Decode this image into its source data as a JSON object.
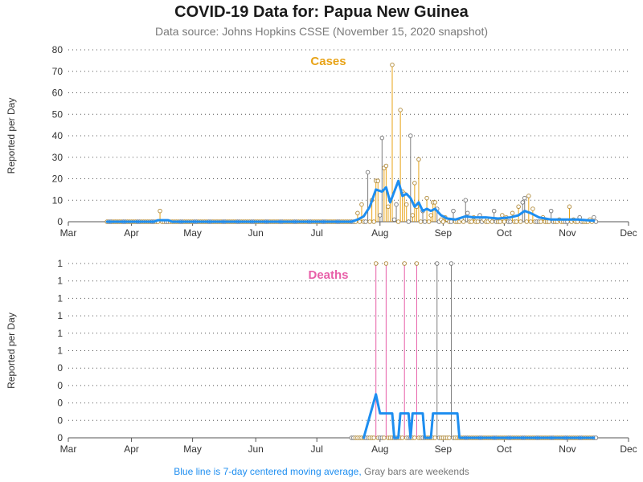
{
  "header": {
    "title": "COVID-19 Data for: Papua New Guinea",
    "subtitle": "Data source: Johns Hopkins CSSE (November 15, 2020 snapshot)"
  },
  "footnote": {
    "blue_text": "Blue line is 7-day centered moving average,",
    "gray_text": "Gray bars are weekends"
  },
  "colors": {
    "weekday": "#e8a317",
    "weekend": "#7f7f7f",
    "cases_title": "#e8a317",
    "deaths_title": "#e85fa8",
    "deaths_weekday": "#e85fa8",
    "moving_average": "#1e8ef0",
    "grid": "#555555",
    "axis": "#555555"
  },
  "chart_data": [
    {
      "type": "bar",
      "title": "Cases",
      "ylabel": "Reported per Day",
      "x_axis": "date",
      "xlim": [
        "2020-03-01",
        "2020-12-01"
      ],
      "month_ticks": [
        "Mar",
        "Apr",
        "May",
        "Jun",
        "Jul",
        "Aug",
        "Sep",
        "Oct",
        "Nov",
        "Dec"
      ],
      "ylim": [
        0,
        80
      ],
      "y_ticks": [
        "0",
        "10",
        "20",
        "30",
        "40",
        "50",
        "60",
        "70",
        "80"
      ],
      "grid": "horizontal dotted",
      "start_date": "2020-03-20",
      "end_date": "2020-11-15",
      "spikes": [
        {
          "date": "2020-04-15",
          "value": 5
        },
        {
          "date": "2020-07-21",
          "value": 4
        },
        {
          "date": "2020-07-23",
          "value": 8
        },
        {
          "date": "2020-07-26",
          "value": 23
        },
        {
          "date": "2020-07-28",
          "value": 10
        },
        {
          "date": "2020-07-30",
          "value": 19
        },
        {
          "date": "2020-07-31",
          "value": 19
        },
        {
          "date": "2020-08-01",
          "value": 3
        },
        {
          "date": "2020-08-02",
          "value": 39
        },
        {
          "date": "2020-08-03",
          "value": 25
        },
        {
          "date": "2020-08-04",
          "value": 26
        },
        {
          "date": "2020-08-05",
          "value": 7
        },
        {
          "date": "2020-08-06",
          "value": 10
        },
        {
          "date": "2020-08-07",
          "value": 73
        },
        {
          "date": "2020-08-08",
          "value": 1
        },
        {
          "date": "2020-08-09",
          "value": 8
        },
        {
          "date": "2020-08-11",
          "value": 52
        },
        {
          "date": "2020-08-12",
          "value": 14
        },
        {
          "date": "2020-08-13",
          "value": 13
        },
        {
          "date": "2020-08-14",
          "value": 8
        },
        {
          "date": "2020-08-16",
          "value": 40
        },
        {
          "date": "2020-08-17",
          "value": 3
        },
        {
          "date": "2020-08-18",
          "value": 18
        },
        {
          "date": "2020-08-19",
          "value": 7
        },
        {
          "date": "2020-08-20",
          "value": 29
        },
        {
          "date": "2020-08-22",
          "value": 5
        },
        {
          "date": "2020-08-24",
          "value": 11
        },
        {
          "date": "2020-08-26",
          "value": 3
        },
        {
          "date": "2020-08-27",
          "value": 9
        },
        {
          "date": "2020-08-28",
          "value": 9
        },
        {
          "date": "2020-08-29",
          "value": 6
        },
        {
          "date": "2020-08-31",
          "value": 1
        },
        {
          "date": "2020-09-02",
          "value": 2
        },
        {
          "date": "2020-09-03",
          "value": 1
        },
        {
          "date": "2020-09-06",
          "value": 5
        },
        {
          "date": "2020-09-10",
          "value": 1
        },
        {
          "date": "2020-09-12",
          "value": 10
        },
        {
          "date": "2020-09-13",
          "value": 4
        },
        {
          "date": "2020-09-16",
          "value": 2
        },
        {
          "date": "2020-09-19",
          "value": 3
        },
        {
          "date": "2020-09-21",
          "value": 1
        },
        {
          "date": "2020-09-24",
          "value": 1
        },
        {
          "date": "2020-09-26",
          "value": 5
        },
        {
          "date": "2020-09-30",
          "value": 3
        },
        {
          "date": "2020-10-02",
          "value": 2
        },
        {
          "date": "2020-10-05",
          "value": 4
        },
        {
          "date": "2020-10-08",
          "value": 7
        },
        {
          "date": "2020-10-10",
          "value": 9
        },
        {
          "date": "2020-10-11",
          "value": 11
        },
        {
          "date": "2020-10-13",
          "value": 12
        },
        {
          "date": "2020-10-15",
          "value": 6
        },
        {
          "date": "2020-10-20",
          "value": 2
        },
        {
          "date": "2020-10-24",
          "value": 5
        },
        {
          "date": "2020-10-28",
          "value": 1
        },
        {
          "date": "2020-11-02",
          "value": 7
        },
        {
          "date": "2020-11-04",
          "value": 1
        },
        {
          "date": "2020-11-07",
          "value": 2
        },
        {
          "date": "2020-11-12",
          "value": 1
        },
        {
          "date": "2020-11-14",
          "value": 2
        }
      ],
      "moving_average": [
        {
          "date": "2020-03-20",
          "value": 0
        },
        {
          "date": "2020-04-12",
          "value": 0
        },
        {
          "date": "2020-04-14",
          "value": 0.7
        },
        {
          "date": "2020-04-19",
          "value": 0.7
        },
        {
          "date": "2020-04-21",
          "value": 0
        },
        {
          "date": "2020-07-18",
          "value": 0
        },
        {
          "date": "2020-07-21",
          "value": 1
        },
        {
          "date": "2020-07-24",
          "value": 2.5
        },
        {
          "date": "2020-07-27",
          "value": 7
        },
        {
          "date": "2020-07-30",
          "value": 15
        },
        {
          "date": "2020-08-02",
          "value": 14
        },
        {
          "date": "2020-08-04",
          "value": 16
        },
        {
          "date": "2020-08-06",
          "value": 9
        },
        {
          "date": "2020-08-08",
          "value": 14
        },
        {
          "date": "2020-08-10",
          "value": 19
        },
        {
          "date": "2020-08-12",
          "value": 12
        },
        {
          "date": "2020-08-14",
          "value": 13
        },
        {
          "date": "2020-08-16",
          "value": 11
        },
        {
          "date": "2020-08-18",
          "value": 7
        },
        {
          "date": "2020-08-20",
          "value": 9
        },
        {
          "date": "2020-08-22",
          "value": 5
        },
        {
          "date": "2020-08-24",
          "value": 6
        },
        {
          "date": "2020-08-26",
          "value": 5
        },
        {
          "date": "2020-08-28",
          "value": 6
        },
        {
          "date": "2020-08-31",
          "value": 3
        },
        {
          "date": "2020-09-03",
          "value": 1.5
        },
        {
          "date": "2020-09-07",
          "value": 1
        },
        {
          "date": "2020-09-12",
          "value": 2.5
        },
        {
          "date": "2020-09-16",
          "value": 2
        },
        {
          "date": "2020-09-22",
          "value": 2
        },
        {
          "date": "2020-09-28",
          "value": 1.5
        },
        {
          "date": "2020-10-04",
          "value": 2
        },
        {
          "date": "2020-10-08",
          "value": 3
        },
        {
          "date": "2020-10-11",
          "value": 5
        },
        {
          "date": "2020-10-14",
          "value": 4
        },
        {
          "date": "2020-10-18",
          "value": 2
        },
        {
          "date": "2020-10-24",
          "value": 1
        },
        {
          "date": "2020-11-01",
          "value": 1
        },
        {
          "date": "2020-11-06",
          "value": 1
        },
        {
          "date": "2020-11-14",
          "value": 0.5
        }
      ]
    },
    {
      "type": "bar",
      "title": "Deaths",
      "ylabel": "Reported per Day",
      "x_axis": "date",
      "xlim": [
        "2020-03-01",
        "2020-12-01"
      ],
      "month_ticks": [
        "Mar",
        "Apr",
        "May",
        "Jun",
        "Jul",
        "Aug",
        "Sep",
        "Oct",
        "Nov",
        "Dec"
      ],
      "ylim": [
        0,
        1
      ],
      "y_ticks": [
        "0",
        "0",
        "0",
        "0",
        "0",
        "1",
        "1",
        "1",
        "1",
        "1",
        "1"
      ],
      "grid": "horizontal dotted",
      "start_date": "2020-07-18",
      "end_date": "2020-11-15",
      "spikes": [
        {
          "date": "2020-07-30",
          "value": 1
        },
        {
          "date": "2020-08-04",
          "value": 1
        },
        {
          "date": "2020-08-13",
          "value": 1
        },
        {
          "date": "2020-08-19",
          "value": 1
        },
        {
          "date": "2020-08-29",
          "value": 1
        },
        {
          "date": "2020-09-05",
          "value": 1
        }
      ],
      "moving_average": [
        {
          "date": "2020-07-24",
          "value": 0
        },
        {
          "date": "2020-07-30",
          "value": 0.25
        },
        {
          "date": "2020-08-01",
          "value": 0.14
        },
        {
          "date": "2020-08-07",
          "value": 0.14
        },
        {
          "date": "2020-08-08",
          "value": 0
        },
        {
          "date": "2020-08-10",
          "value": 0
        },
        {
          "date": "2020-08-11",
          "value": 0.14
        },
        {
          "date": "2020-08-15",
          "value": 0.14
        },
        {
          "date": "2020-08-16",
          "value": 0
        },
        {
          "date": "2020-08-17",
          "value": 0.14
        },
        {
          "date": "2020-08-22",
          "value": 0.14
        },
        {
          "date": "2020-08-23",
          "value": 0
        },
        {
          "date": "2020-08-26",
          "value": 0
        },
        {
          "date": "2020-08-27",
          "value": 0.14
        },
        {
          "date": "2020-09-08",
          "value": 0.14
        },
        {
          "date": "2020-09-09",
          "value": 0
        },
        {
          "date": "2020-11-14",
          "value": 0
        }
      ]
    }
  ]
}
